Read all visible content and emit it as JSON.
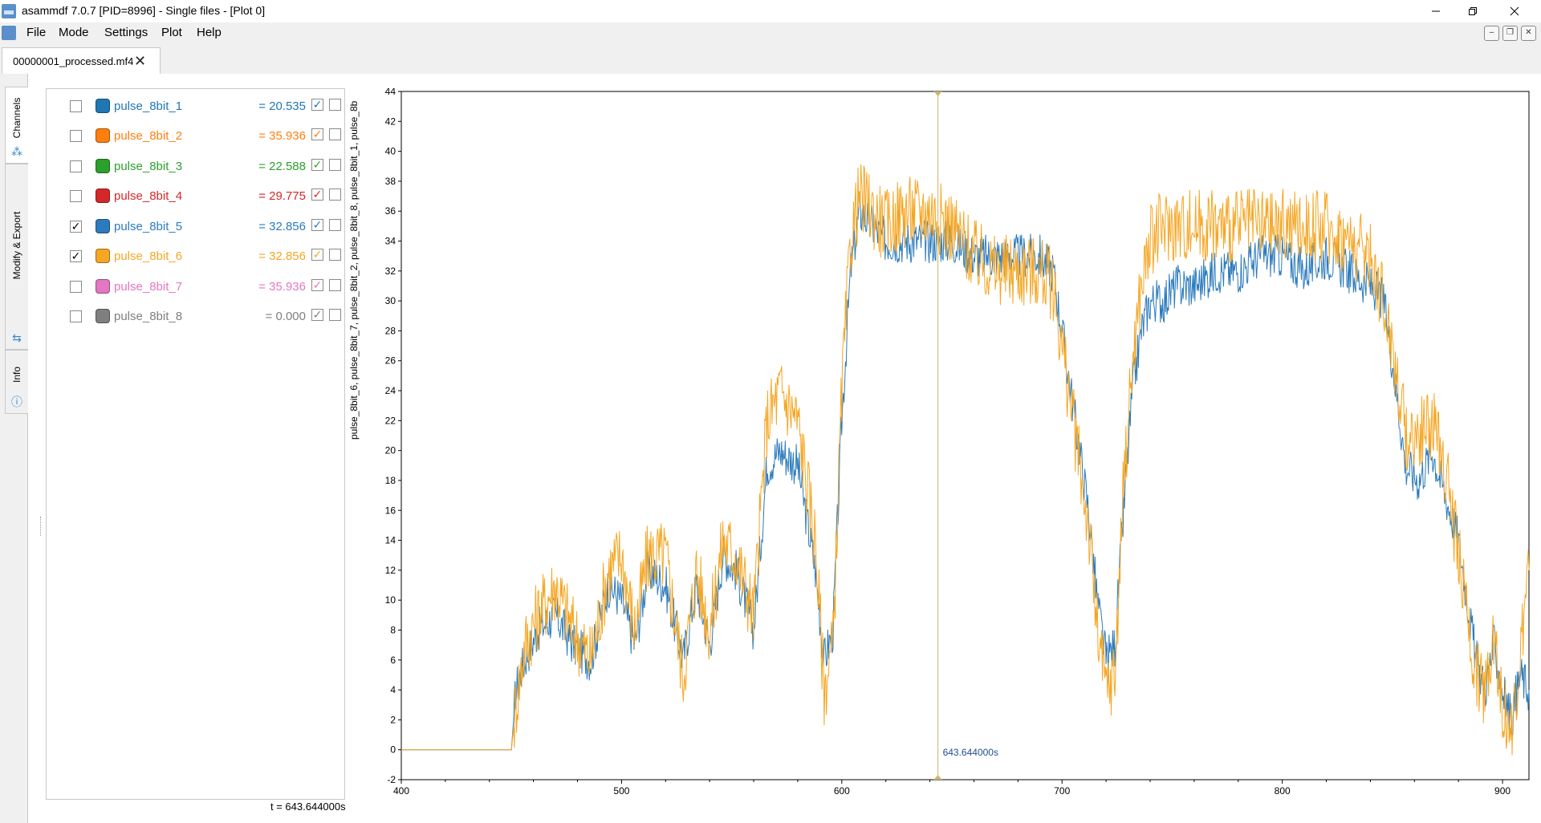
{
  "window": {
    "title": "asammdf 7.0.7 [PID=8996] - Single files - [Plot 0]"
  },
  "menu": {
    "items": [
      "File",
      "Mode",
      "Settings",
      "Plot",
      "Help"
    ]
  },
  "file_tab": {
    "label": "00000001_processed.mf4"
  },
  "side_tabs": {
    "channels": "Channels",
    "modify_export": "Modify & Export",
    "info": "Info"
  },
  "channels": [
    {
      "name": "pulse_8bit_1",
      "value": "= 20.535",
      "color": "#1f77b4",
      "checked": false
    },
    {
      "name": "pulse_8bit_2",
      "value": "= 35.936",
      "color": "#ff7f0e",
      "checked": false
    },
    {
      "name": "pulse_8bit_3",
      "value": "= 22.588",
      "color": "#2ca02c",
      "checked": false
    },
    {
      "name": "pulse_8bit_4",
      "value": "= 29.775",
      "color": "#d62728",
      "checked": false
    },
    {
      "name": "pulse_8bit_5",
      "value": "= 32.856",
      "color": "#2c7bbd",
      "checked": true
    },
    {
      "name": "pulse_8bit_6",
      "value": "= 32.856",
      "color": "#f5a623",
      "checked": true
    },
    {
      "name": "pulse_8bit_7",
      "value": "= 35.936",
      "color": "#e377c2",
      "checked": false
    },
    {
      "name": "pulse_8bit_8",
      "value": "= 0.000",
      "color": "#7f7f7f",
      "checked": false
    }
  ],
  "time_readout": "t = 643.644000s",
  "chart_data": {
    "type": "line",
    "ylabel": "pulse_8bit_6, pulse_8bit_7, pulse_8bit_2, pulse_8bit_8, pulse_8bit_1, pulse_8b",
    "xlim": [
      400,
      912
    ],
    "ylim": [
      -2,
      44
    ],
    "x_ticks": [
      400,
      500,
      600,
      700,
      800,
      900
    ],
    "y_ticks": [
      -2,
      0,
      2,
      4,
      6,
      8,
      10,
      12,
      14,
      16,
      18,
      20,
      22,
      24,
      26,
      28,
      30,
      32,
      34,
      36,
      38,
      40,
      42,
      44
    ],
    "cursor": {
      "x": 643.644,
      "label": "643.644000s"
    },
    "series": [
      {
        "name": "pulse_8bit_5",
        "color": "#2c7bbd",
        "x": [
          400,
          450,
          452,
          456,
          462,
          470,
          478,
          486,
          494,
          500,
          506,
          512,
          520,
          528,
          534,
          540,
          546,
          552,
          560,
          566,
          572,
          580,
          588,
          592,
          596,
          600,
          604,
          608,
          614,
          620,
          628,
          640,
          650,
          660,
          670,
          680,
          690,
          696,
          700,
          706,
          712,
          716,
          720,
          724,
          728,
          732,
          736,
          740,
          746,
          752,
          760,
          770,
          780,
          790,
          800,
          810,
          820,
          830,
          840,
          846,
          850,
          856,
          862,
          868,
          874,
          880,
          884,
          888,
          892,
          896,
          900,
          904,
          908,
          912
        ],
        "y": [
          0,
          0,
          4,
          6,
          8,
          9,
          7,
          6,
          11,
          10,
          7,
          12,
          11,
          6,
          11,
          7,
          13,
          12,
          8,
          19,
          20,
          19,
          12,
          6,
          8,
          22,
          32,
          36,
          35,
          34,
          34,
          34,
          34,
          33,
          33,
          33,
          33,
          32,
          28,
          22,
          16,
          10,
          6,
          7,
          16,
          24,
          28,
          30,
          30,
          31,
          31,
          32,
          32,
          33,
          33,
          32,
          33,
          32,
          31,
          30,
          26,
          19,
          18,
          20,
          17,
          14,
          10,
          6,
          4,
          7,
          4,
          2,
          5,
          4
        ]
      },
      {
        "name": "pulse_8bit_6",
        "color": "#f5a623",
        "x": [
          400,
          450,
          452,
          456,
          462,
          470,
          478,
          486,
          494,
          500,
          506,
          512,
          520,
          528,
          534,
          540,
          546,
          552,
          560,
          566,
          572,
          580,
          588,
          592,
          596,
          600,
          604,
          608,
          614,
          620,
          628,
          640,
          650,
          660,
          670,
          680,
          690,
          696,
          700,
          706,
          712,
          716,
          720,
          724,
          728,
          732,
          736,
          740,
          746,
          752,
          760,
          770,
          780,
          790,
          800,
          810,
          820,
          830,
          840,
          846,
          850,
          856,
          862,
          868,
          874,
          880,
          884,
          888,
          892,
          896,
          900,
          904,
          908,
          912
        ],
        "y": [
          0,
          0,
          3,
          7,
          9,
          11,
          8,
          6,
          12,
          13,
          8,
          13,
          13,
          5,
          12,
          8,
          14,
          13,
          9,
          22,
          24,
          22,
          14,
          4,
          7,
          24,
          34,
          37,
          36,
          35,
          36,
          36,
          35,
          33,
          32,
          32,
          32,
          31,
          27,
          21,
          15,
          8,
          4,
          5,
          18,
          26,
          31,
          34,
          35,
          35,
          35,
          35,
          35,
          35,
          35,
          35,
          35,
          34,
          33,
          30,
          27,
          21,
          21,
          22,
          19,
          13,
          9,
          5,
          4,
          8,
          3,
          1,
          6,
          12
        ]
      }
    ]
  }
}
